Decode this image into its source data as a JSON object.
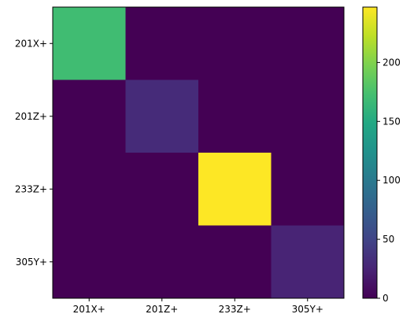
{
  "chart_data": {
    "type": "heatmap",
    "x_categories": [
      "201X+",
      "201Z+",
      "233Z+",
      "305Y+"
    ],
    "y_categories": [
      "201X+",
      "201Z+",
      "233Z+",
      "305Y+"
    ],
    "values": [
      [
        170,
        0,
        0,
        0
      ],
      [
        0,
        30,
        0,
        0
      ],
      [
        0,
        0,
        247,
        0
      ],
      [
        0,
        0,
        0,
        25
      ]
    ],
    "colorbar": {
      "min": 0,
      "max": 247,
      "ticks": [
        0,
        50,
        100,
        150,
        200
      ],
      "colormap": "viridis"
    },
    "grid": false
  }
}
